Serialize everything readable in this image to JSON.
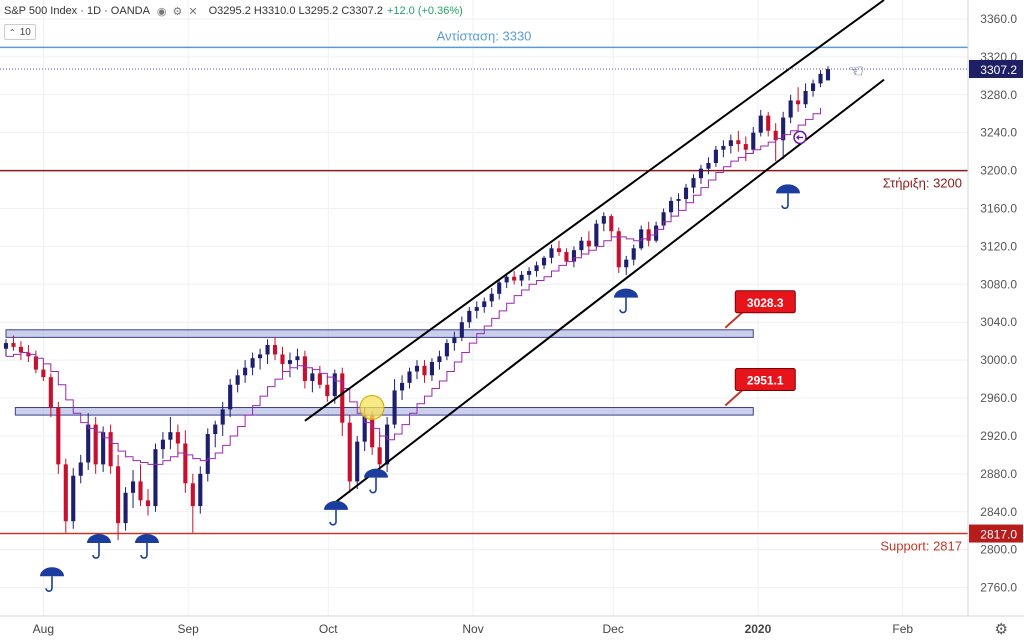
{
  "header": {
    "symbol": "S&P 500 Index · 1D · OANDA",
    "ohlc": "O3295.2 H3310.0 L3295.2 C3307.2",
    "change": "+12.0 (+0.36%)",
    "indicator_value": "10"
  },
  "chart_data": {
    "type": "candlestick",
    "y_axis": {
      "min": 2730,
      "max": 3380,
      "ticks": [
        2760,
        2800,
        2840,
        2880,
        2920,
        2960,
        3000,
        3040,
        3080,
        3120,
        3160,
        3200,
        3240,
        3280,
        3320,
        3360
      ],
      "tick_labels": [
        "2760.0",
        "2800.0",
        "2840.0",
        "2880.0",
        "2920.0",
        "2960.0",
        "3000.0",
        "3040.0",
        "3080.0",
        "3120.0",
        "3160.0",
        "3200.0",
        "3240.0",
        "3280.0",
        "3320.0",
        "3360.0"
      ]
    },
    "x_axis": {
      "labels": [
        {
          "label": "Aug",
          "date": "2019-08-01",
          "bold": false
        },
        {
          "label": "Sep",
          "date": "2019-09-01",
          "bold": false
        },
        {
          "label": "Oct",
          "date": "2019-10-01",
          "bold": false
        },
        {
          "label": "Nov",
          "date": "2019-11-01",
          "bold": false
        },
        {
          "label": "Dec",
          "date": "2019-12-01",
          "bold": false
        },
        {
          "label": "2020",
          "date": "2020-01-01",
          "bold": true
        },
        {
          "label": "Feb",
          "date": "2020-02-01",
          "bold": false
        }
      ]
    },
    "series": [
      {
        "name": "",
        "type": "candlestick",
        "up_color": "#1e1e6e",
        "down_color": "#c8102e",
        "start_date": "2019-07-24",
        "end_date": "2020-01-16",
        "ohlc": [
          [
            3012,
            3022,
            3004,
            3018
          ],
          [
            3018,
            3026,
            3010,
            3014
          ],
          [
            3014,
            3020,
            3000,
            3008
          ],
          [
            3008,
            3016,
            2998,
            3004
          ],
          [
            3004,
            3010,
            2986,
            2990
          ],
          [
            2990,
            2996,
            2978,
            2982
          ],
          [
            2982,
            2986,
            2940,
            2950
          ],
          [
            2950,
            2956,
            2880,
            2890
          ],
          [
            2890,
            2896,
            2818,
            2830
          ],
          [
            2830,
            2886,
            2822,
            2878
          ],
          [
            2878,
            2900,
            2870,
            2892
          ],
          [
            2892,
            2944,
            2884,
            2932
          ],
          [
            2932,
            2940,
            2880,
            2890
          ],
          [
            2890,
            2930,
            2882,
            2924
          ],
          [
            2924,
            2932,
            2880,
            2888
          ],
          [
            2888,
            2900,
            2810,
            2828
          ],
          [
            2828,
            2866,
            2820,
            2860
          ],
          [
            2860,
            2884,
            2844,
            2872
          ],
          [
            2872,
            2890,
            2846,
            2852
          ],
          [
            2852,
            2864,
            2836,
            2846
          ],
          [
            2846,
            2912,
            2840,
            2906
          ],
          [
            2906,
            2924,
            2896,
            2916
          ],
          [
            2916,
            2940,
            2906,
            2924
          ],
          [
            2924,
            2932,
            2900,
            2912
          ],
          [
            2912,
            2926,
            2860,
            2870
          ],
          [
            2870,
            2880,
            2818,
            2846
          ],
          [
            2846,
            2888,
            2838,
            2880
          ],
          [
            2880,
            2928,
            2872,
            2922
          ],
          [
            2922,
            2936,
            2908,
            2932
          ],
          [
            2932,
            2956,
            2920,
            2948
          ],
          [
            2948,
            2980,
            2940,
            2974
          ],
          [
            2974,
            2990,
            2966,
            2984
          ],
          [
            2984,
            3000,
            2976,
            2992
          ],
          [
            2992,
            3008,
            2984,
            3002
          ],
          [
            3002,
            3012,
            2990,
            3006
          ],
          [
            3006,
            3022,
            2996,
            3016
          ],
          [
            3016,
            3024,
            3000,
            3006
          ],
          [
            3006,
            3014,
            2986,
            2996
          ],
          [
            2996,
            3008,
            2982,
            3000
          ],
          [
            3000,
            3012,
            2990,
            3004
          ],
          [
            3004,
            3010,
            2970,
            2978
          ],
          [
            2978,
            2992,
            2966,
            2986
          ],
          [
            2986,
            2994,
            2970,
            2974
          ],
          [
            2974,
            2984,
            2956,
            2962
          ],
          [
            2962,
            2990,
            2954,
            2986
          ],
          [
            2986,
            2992,
            2920,
            2934
          ],
          [
            2934,
            2942,
            2860,
            2872
          ],
          [
            2872,
            2920,
            2864,
            2914
          ],
          [
            2914,
            2950,
            2904,
            2942
          ],
          [
            2942,
            2946,
            2900,
            2908
          ],
          [
            2908,
            2924,
            2884,
            2890
          ],
          [
            2890,
            2940,
            2882,
            2932
          ],
          [
            2932,
            2980,
            2928,
            2968
          ],
          [
            2968,
            2984,
            2958,
            2976
          ],
          [
            2976,
            2992,
            2970,
            2988
          ],
          [
            2988,
            3000,
            2980,
            2994
          ],
          [
            2994,
            3000,
            2976,
            2984
          ],
          [
            2984,
            3002,
            2978,
            2998
          ],
          [
            2998,
            3010,
            2990,
            3004
          ],
          [
            3004,
            3022,
            3000,
            3018
          ],
          [
            3018,
            3030,
            3010,
            3024
          ],
          [
            3024,
            3046,
            3020,
            3040
          ],
          [
            3040,
            3056,
            3034,
            3052
          ],
          [
            3052,
            3062,
            3044,
            3056
          ],
          [
            3056,
            3066,
            3050,
            3062
          ],
          [
            3062,
            3076,
            3056,
            3070
          ],
          [
            3070,
            3086,
            3064,
            3082
          ],
          [
            3082,
            3092,
            3076,
            3088
          ],
          [
            3088,
            3094,
            3080,
            3084
          ],
          [
            3084,
            3094,
            3078,
            3090
          ],
          [
            3090,
            3098,
            3084,
            3094
          ],
          [
            3094,
            3104,
            3088,
            3100
          ],
          [
            3100,
            3110,
            3096,
            3108
          ],
          [
            3108,
            3122,
            3102,
            3118
          ],
          [
            3118,
            3126,
            3110,
            3114
          ],
          [
            3114,
            3118,
            3100,
            3104
          ],
          [
            3104,
            3120,
            3098,
            3116
          ],
          [
            3116,
            3130,
            3110,
            3126
          ],
          [
            3126,
            3136,
            3114,
            3120
          ],
          [
            3120,
            3148,
            3118,
            3144
          ],
          [
            3144,
            3156,
            3136,
            3152
          ],
          [
            3152,
            3154,
            3130,
            3136
          ],
          [
            3136,
            3140,
            3092,
            3098
          ],
          [
            3098,
            3110,
            3090,
            3106
          ],
          [
            3106,
            3122,
            3100,
            3118
          ],
          [
            3118,
            3142,
            3116,
            3138
          ],
          [
            3138,
            3146,
            3120,
            3126
          ],
          [
            3126,
            3146,
            3124,
            3142
          ],
          [
            3142,
            3160,
            3138,
            3156
          ],
          [
            3156,
            3172,
            3150,
            3168
          ],
          [
            3168,
            3176,
            3158,
            3170
          ],
          [
            3170,
            3186,
            3164,
            3182
          ],
          [
            3182,
            3196,
            3176,
            3192
          ],
          [
            3192,
            3206,
            3186,
            3202
          ],
          [
            3202,
            3214,
            3196,
            3208
          ],
          [
            3208,
            3226,
            3204,
            3222
          ],
          [
            3222,
            3232,
            3214,
            3226
          ],
          [
            3226,
            3238,
            3218,
            3232
          ],
          [
            3232,
            3242,
            3220,
            3228
          ],
          [
            3228,
            3236,
            3210,
            3222
          ],
          [
            3222,
            3246,
            3218,
            3240
          ],
          [
            3240,
            3264,
            3236,
            3258
          ],
          [
            3258,
            3262,
            3236,
            3242
          ],
          [
            3242,
            3250,
            3210,
            3232
          ],
          [
            3232,
            3262,
            3212,
            3256
          ],
          [
            3256,
            3280,
            3250,
            3274
          ],
          [
            3274,
            3288,
            3262,
            3270
          ],
          [
            3270,
            3292,
            3266,
            3284
          ],
          [
            3284,
            3296,
            3278,
            3292
          ],
          [
            3292,
            3306,
            3288,
            3302
          ],
          [
            3295.2,
            3310,
            3295.2,
            3307.2
          ]
        ]
      },
      {
        "name": "",
        "type": "line",
        "color": "#9c27b0",
        "values": [
          3004,
          3006,
          3008,
          3006,
          3002,
          2996,
          2988,
          2974,
          2958,
          2944,
          2934,
          2928,
          2924,
          2918,
          2912,
          2904,
          2898,
          2894,
          2892,
          2890,
          2890,
          2894,
          2898,
          2902,
          2900,
          2896,
          2894,
          2896,
          2902,
          2910,
          2920,
          2930,
          2942,
          2952,
          2962,
          2972,
          2980,
          2988,
          2992,
          2994,
          2992,
          2990,
          2986,
          2982,
          2978,
          2970,
          2956,
          2944,
          2934,
          2928,
          2920,
          2916,
          2922,
          2932,
          2944,
          2954,
          2962,
          2970,
          2978,
          2988,
          2998,
          3008,
          3018,
          3028,
          3036,
          3044,
          3052,
          3060,
          3068,
          3074,
          3080,
          3084,
          3088,
          3094,
          3100,
          3104,
          3108,
          3112,
          3116,
          3120,
          3126,
          3130,
          3130,
          3128,
          3126,
          3128,
          3132,
          3138,
          3146,
          3152,
          3158,
          3166,
          3174,
          3182,
          3190,
          3198,
          3204,
          3210,
          3214,
          3218,
          3222,
          3226,
          3230,
          3234,
          3238,
          3242,
          3248,
          3254,
          3260,
          3266
        ]
      }
    ],
    "horizontal_levels": [
      {
        "value": 3330,
        "label": "Αντίσταση: 3330",
        "color": "#5b9bd5"
      },
      {
        "value": 3200,
        "label": "Στήριξη: 3200",
        "color": "#8b1a1a"
      },
      {
        "value": 2817,
        "label": "Support: 2817",
        "color": "#c0392b"
      }
    ],
    "zones": [
      {
        "low": 3024,
        "high": 3032,
        "from": "2019-07-24",
        "to": "2019-12-31",
        "label": "3028.3"
      },
      {
        "low": 2942,
        "high": 2950,
        "from": "2019-07-26",
        "to": "2019-12-31",
        "label": "2951.1"
      }
    ],
    "trendlines": [
      {
        "from": [
          "2019-09-26",
          2936
        ],
        "to": [
          "2020-01-28",
          3380
        ]
      },
      {
        "from": [
          "2019-10-02",
          2848
        ],
        "to": [
          "2020-01-28",
          3296
        ]
      }
    ],
    "last_price": {
      "value": 3307.2,
      "label": "3307.2"
    },
    "grid": true
  }
}
